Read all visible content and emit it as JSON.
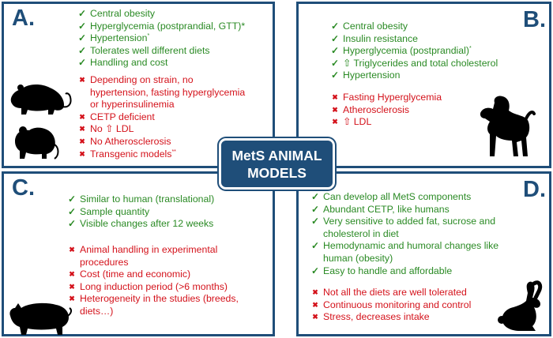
{
  "center_title": {
    "line1": "MetS ANIMAL",
    "line2": "MODELS"
  },
  "panels": {
    "a": {
      "letter": "A.",
      "pros": [
        "Central obesity",
        "Hyperglycemia (postprandial, GTT)*",
        "Hypertension",
        "Tolerates well different diets",
        "Handling and cost"
      ],
      "pros_sup": {
        "hypertension": "*"
      },
      "cons": [
        "Depending on strain, no hypertension, fasting hyperglycemia or hyperinsulinemia",
        "CETP deficient",
        "No ⇧ LDL",
        "No Atherosclerosis",
        "Transgenic models"
      ],
      "cons_sup": {
        "transgenic": "**"
      }
    },
    "b": {
      "letter": "B.",
      "pros": [
        "Central obesity",
        "Insulin resistance",
        "Hyperglycemia (postprandial)",
        "⇧ Triglycerides and total cholesterol",
        "Hypertension"
      ],
      "pros_sup": {
        "hyperglycemia": "*"
      },
      "cons": [
        "Fasting Hyperglycemia",
        "Atherosclerosis",
        "⇧ LDL"
      ]
    },
    "c": {
      "letter": "C.",
      "pros": [
        "Similar to human (translational)",
        "Sample quantity",
        "Visible changes after 12 weeks"
      ],
      "cons": [
        "Animal handling in experimental procedures",
        "Cost (time and economic)",
        "Long induction period (>6 months)",
        "Heterogeneity in the studies (breeds, diets…)"
      ]
    },
    "d": {
      "letter": "D.",
      "pros": [
        "Can develop all MetS components",
        "Abundant CETP, like humans",
        "Very sensitive to added fat, sucrose and cholesterol in diet",
        "Hemodynamic and humoral changes like human (obesity)",
        "Easy to handle and affordable"
      ],
      "cons": [
        "Not all the diets are well tolerated",
        "Continuous monitoring and control",
        "Stress, decreases intake"
      ]
    }
  },
  "marks": {
    "pro": "✓",
    "con": "✖"
  },
  "colors": {
    "frame": "#1f4e79",
    "pro": "#2a8a24",
    "con": "#d4121b"
  },
  "icons": [
    "rat-icon",
    "mouse-icon",
    "dog-icon",
    "pig-icon",
    "rabbit-icon"
  ]
}
